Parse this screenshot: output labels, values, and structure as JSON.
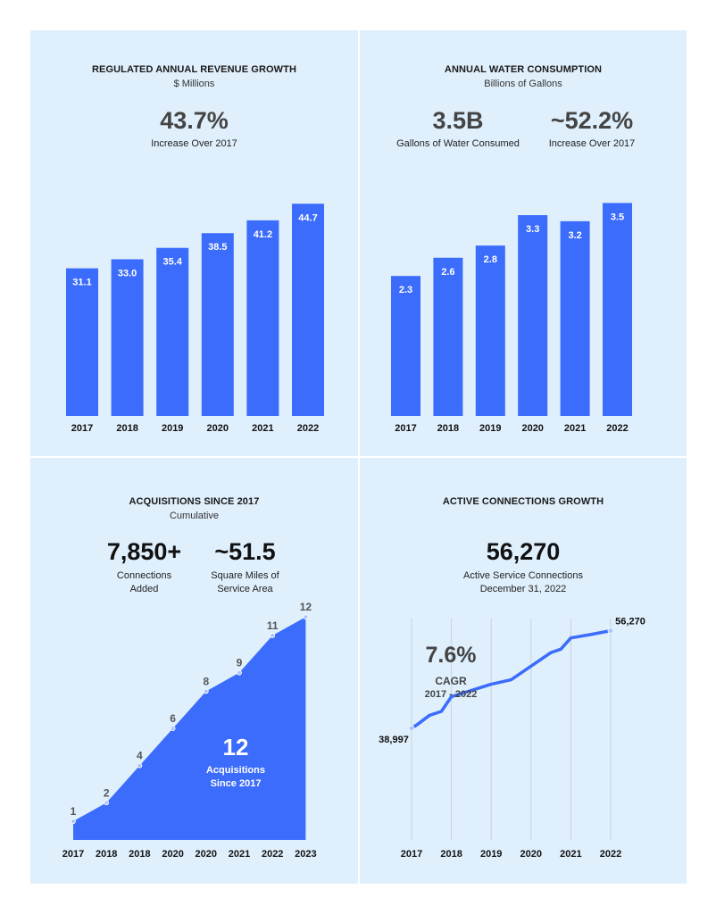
{
  "panels": {
    "revenue": {
      "title": "REGULATED ANNUAL REVENUE GROWTH",
      "subtitle": "$ Millions",
      "kpi_value": "43.7%",
      "kpi_label": "Increase Over 2017"
    },
    "water": {
      "title": "ANNUAL WATER CONSUMPTION",
      "subtitle": "Billions of Gallons",
      "kpi1_value": "3.5B",
      "kpi1_label": "Gallons of Water Consumed",
      "kpi2_value": "~52.2%",
      "kpi2_label": "Increase Over 2017"
    },
    "acquisitions": {
      "title": "ACQUISITIONS SINCE 2017",
      "subtitle": "Cumulative",
      "kpi1_value": "7,850+",
      "kpi1_label_line1": "Connections",
      "kpi1_label_line2": "Added",
      "kpi2_value": "~51.5",
      "kpi2_label_line1": "Square Miles of",
      "kpi2_label_line2": "Service Area",
      "overlay_value": "12",
      "overlay_line1": "Acquisitions",
      "overlay_line2": "Since 2017"
    },
    "connections": {
      "title": "ACTIVE CONNECTIONS GROWTH",
      "kpi_value": "56,270",
      "kpi_label_line1": "Active Service Connections",
      "kpi_label_line2": "December 31, 2022",
      "cagr_value": "7.6%",
      "cagr_label": "CAGR",
      "cagr_period": "2017 - 2022"
    }
  },
  "colors": {
    "bar": "#3b6cfb",
    "panel_bg": "#dfeffc",
    "marker": "#a9c4ff"
  },
  "chart_data": [
    {
      "type": "bar",
      "title": "REGULATED ANNUAL REVENUE GROWTH",
      "subtitle": "$ Millions",
      "categories": [
        "2017",
        "2018",
        "2019",
        "2020",
        "2021",
        "2022"
      ],
      "values": [
        31.1,
        33.0,
        35.4,
        38.5,
        41.2,
        44.7
      ],
      "value_labels": [
        "31.1",
        "33.0",
        "35.4",
        "38.5",
        "41.2",
        "44.7"
      ],
      "ylim": [
        0,
        45.5
      ]
    },
    {
      "type": "bar",
      "title": "ANNUAL WATER CONSUMPTION",
      "subtitle": "Billions of Gallons",
      "categories": [
        "2017",
        "2018",
        "2019",
        "2020",
        "2021",
        "2022"
      ],
      "values": [
        2.3,
        2.6,
        2.8,
        3.3,
        3.2,
        3.5
      ],
      "value_labels": [
        "2.3",
        "2.6",
        "2.8",
        "3.3",
        "3.2",
        "3.5"
      ],
      "ylim": [
        0,
        3.55
      ]
    },
    {
      "type": "area",
      "title": "ACQUISITIONS SINCE 2017",
      "subtitle": "Cumulative",
      "categories": [
        "2017",
        "2018",
        "2018",
        "2020",
        "2020",
        "2021",
        "2022",
        "2023"
      ],
      "points": [
        {
          "x": 0,
          "y": 1
        },
        {
          "x": 1,
          "y": 2
        },
        {
          "x": 2,
          "y": 4
        },
        {
          "x": 3,
          "y": 6
        },
        {
          "x": 4,
          "y": 8
        },
        {
          "x": 5,
          "y": 9
        },
        {
          "x": 6,
          "y": 11
        },
        {
          "x": 7,
          "y": 12
        }
      ],
      "point_labels": [
        "1",
        "2",
        "4",
        "6",
        "8",
        "9",
        "11",
        "12"
      ],
      "ylim": [
        0,
        12.3
      ]
    },
    {
      "type": "line",
      "title": "ACTIVE CONNECTIONS GROWTH",
      "x_ticks": [
        "2017",
        "2018",
        "2019",
        "2020",
        "2021",
        "2022"
      ],
      "points": [
        {
          "x": 2017.0,
          "y": 38997
        },
        {
          "x": 2017.15,
          "y": 39700
        },
        {
          "x": 2017.45,
          "y": 41300
        },
        {
          "x": 2017.75,
          "y": 42000
        },
        {
          "x": 2018.0,
          "y": 44600
        },
        {
          "x": 2018.5,
          "y": 45700
        },
        {
          "x": 2019.0,
          "y": 46800
        },
        {
          "x": 2019.5,
          "y": 47600
        },
        {
          "x": 2020.0,
          "y": 50000
        },
        {
          "x": 2020.5,
          "y": 52400
        },
        {
          "x": 2020.75,
          "y": 53000
        },
        {
          "x": 2021.0,
          "y": 55000
        },
        {
          "x": 2021.5,
          "y": 55600
        },
        {
          "x": 2022.0,
          "y": 56270
        }
      ],
      "point_labels": [
        {
          "x": 2017.0,
          "text": "38,997"
        },
        {
          "x": 2022.0,
          "text": "56,270"
        }
      ],
      "ylim": [
        30000,
        60000
      ]
    }
  ]
}
